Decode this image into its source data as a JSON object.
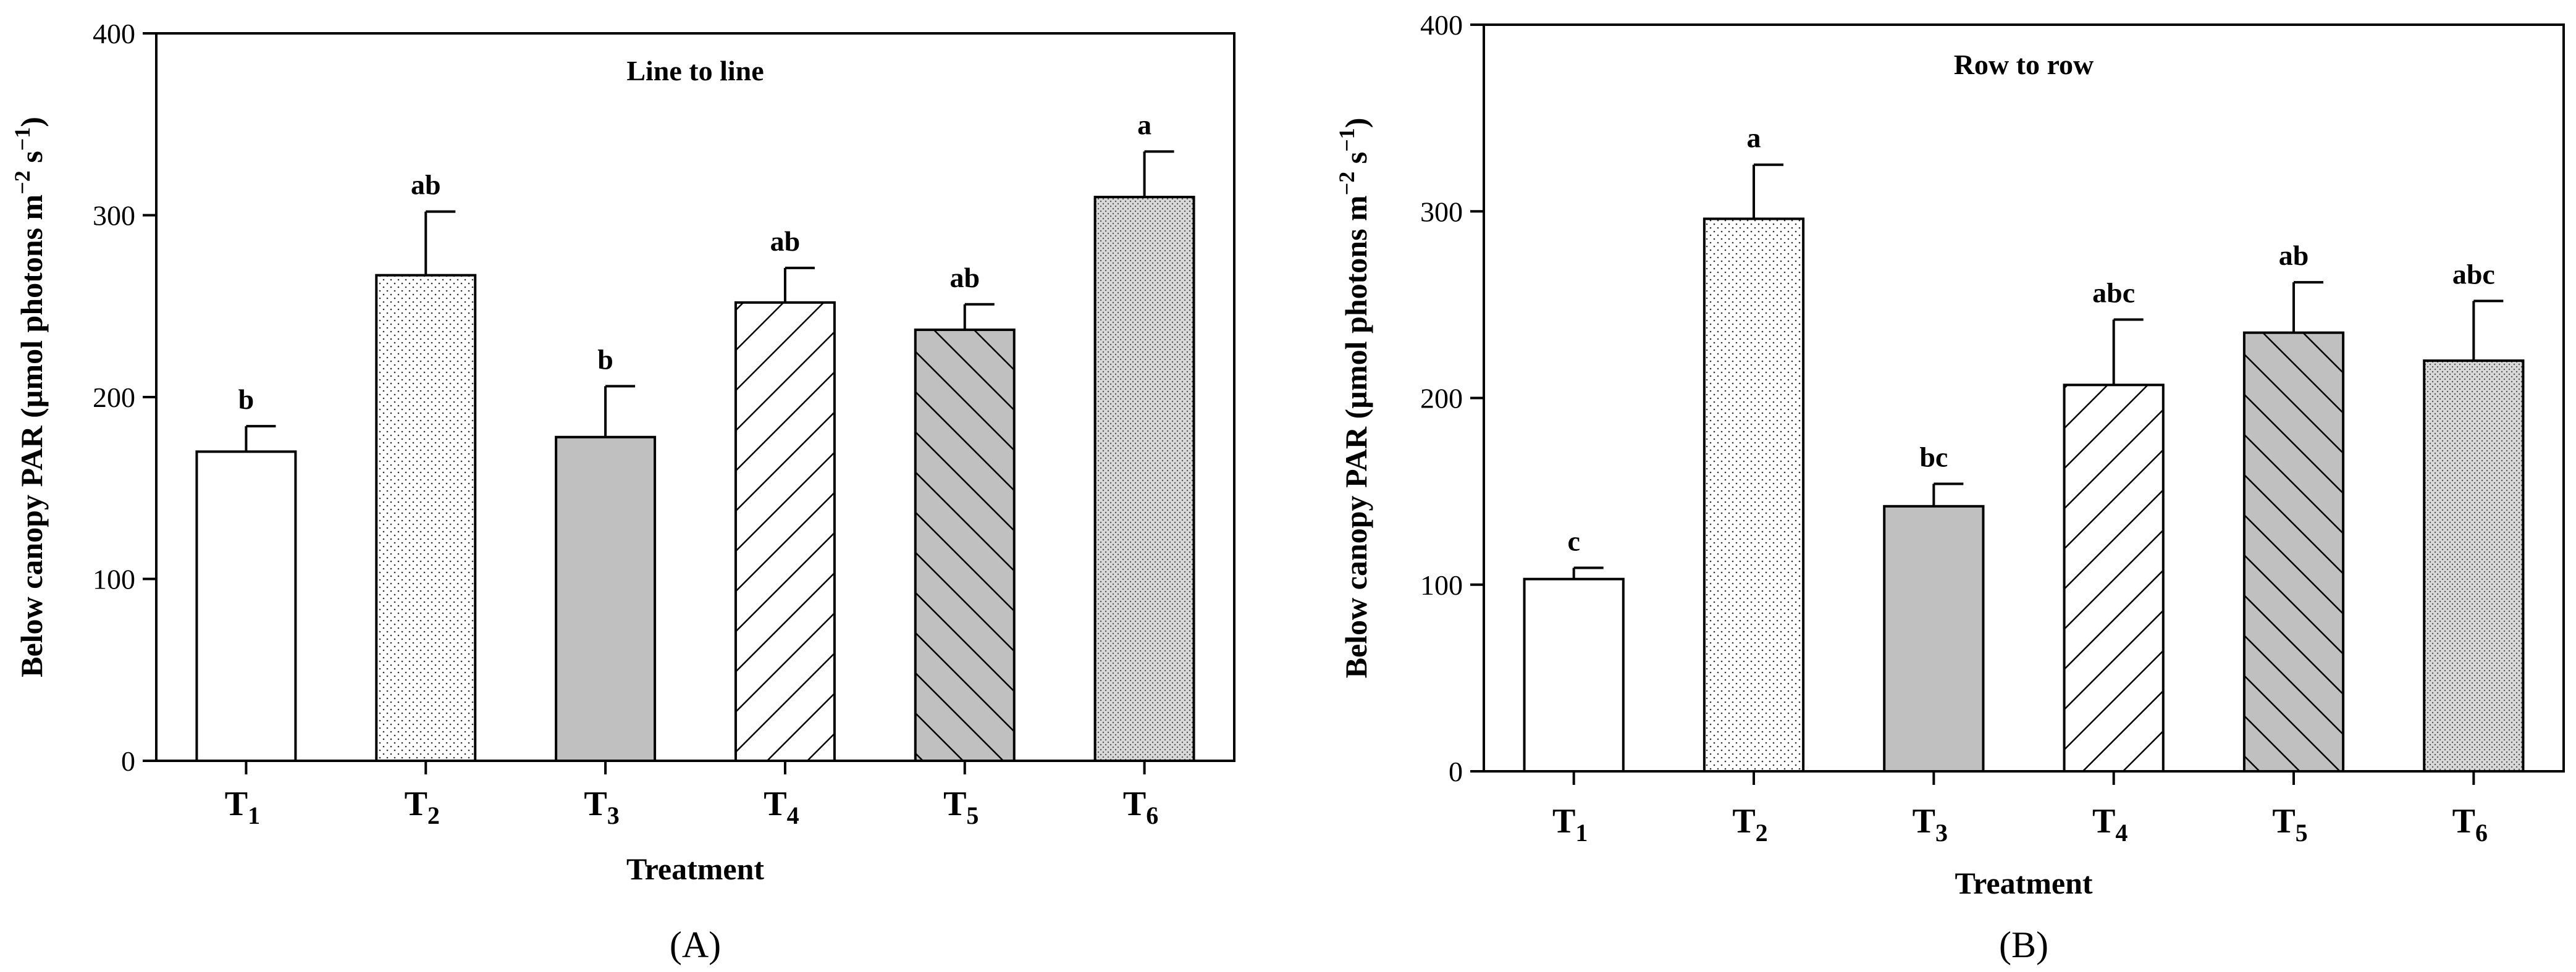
{
  "chart_data": [
    {
      "type": "bar",
      "panel_label": "(A)",
      "title": "Line to line",
      "xlabel": "Treatment",
      "ylabel": "Below canopy PAR (µmol photons m⁻² s⁻¹)",
      "ylabel_parts": [
        "Below canopy PAR (µmol photons m",
        "−2",
        " s",
        "−1",
        ")"
      ],
      "ylim": [
        0,
        400
      ],
      "yticks": [
        0,
        100,
        200,
        300,
        400
      ],
      "categories": [
        {
          "main": "T",
          "sub": "1"
        },
        {
          "main": "T",
          "sub": "2"
        },
        {
          "main": "T",
          "sub": "3"
        },
        {
          "main": "T",
          "sub": "4"
        },
        {
          "main": "T",
          "sub": "5"
        },
        {
          "main": "T",
          "sub": "6"
        }
      ],
      "values": [
        170,
        267,
        178,
        252,
        237,
        310
      ],
      "errors": [
        14,
        35,
        28,
        19,
        14,
        25
      ],
      "significance": [
        "b",
        "ab",
        "b",
        "ab",
        "ab",
        "a"
      ],
      "fills": [
        "none",
        "dots",
        "gray",
        "hatch",
        "gray-hatch",
        "fine-dots"
      ]
    },
    {
      "type": "bar",
      "panel_label": "(B)",
      "title": "Row to row",
      "xlabel": "Treatment",
      "ylabel": "Below canopy PAR (µmol photons m⁻² s⁻¹)",
      "ylabel_parts": [
        "Below canopy PAR (µmol photons m",
        "−2",
        " s",
        "−1",
        ")"
      ],
      "ylim": [
        0,
        400
      ],
      "yticks": [
        0,
        100,
        200,
        300,
        400
      ],
      "categories": [
        {
          "main": "T",
          "sub": "1"
        },
        {
          "main": "T",
          "sub": "2"
        },
        {
          "main": "T",
          "sub": "3"
        },
        {
          "main": "T",
          "sub": "4"
        },
        {
          "main": "T",
          "sub": "5"
        },
        {
          "main": "T",
          "sub": "6"
        }
      ],
      "values": [
        103,
        296,
        142,
        207,
        235,
        220
      ],
      "errors": [
        6,
        29,
        12,
        35,
        27,
        32
      ],
      "significance": [
        "c",
        "a",
        "bc",
        "abc",
        "ab",
        "abc"
      ],
      "fills": [
        "none",
        "dots",
        "gray",
        "hatch",
        "gray-hatch",
        "fine-dots"
      ]
    }
  ]
}
